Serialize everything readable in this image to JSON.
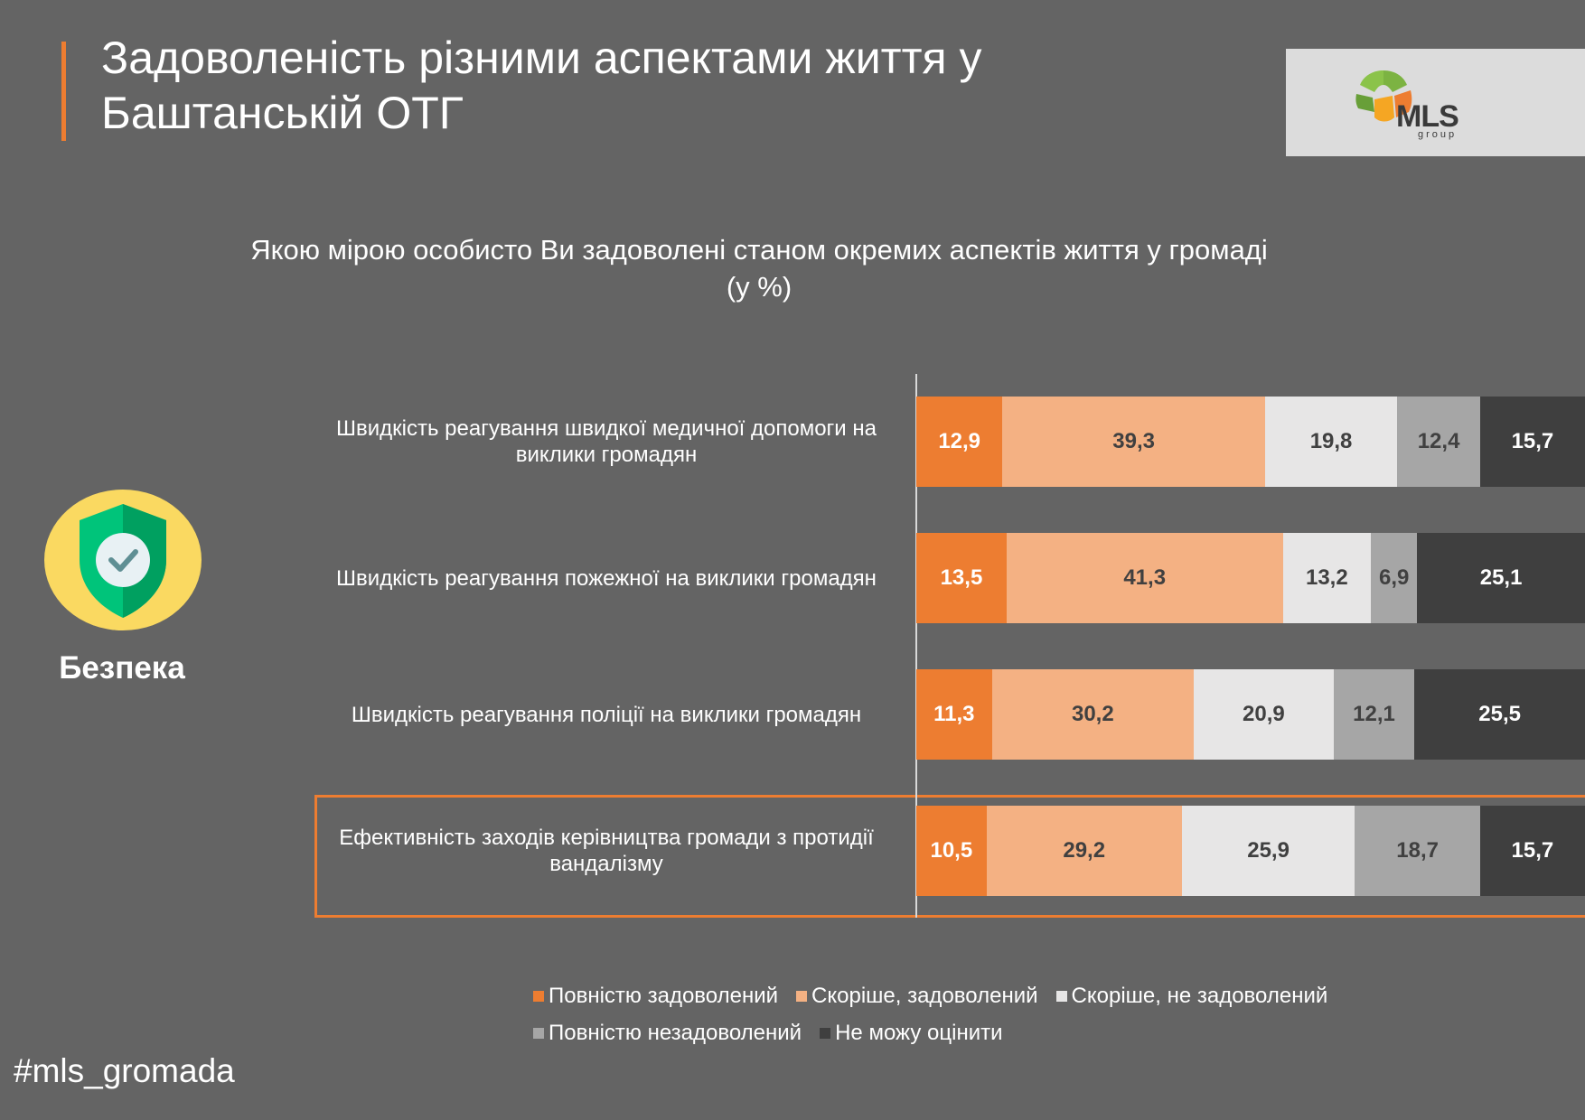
{
  "header": {
    "title_line1": "Задоволеність різними аспектами життя у",
    "title_line2": "Баштанській ОТГ",
    "logo_text": "MLS",
    "logo_sub": "group"
  },
  "question_line1": "Якою мірою особисто Ви задоволені станом окремих аспектів життя у громаді",
  "question_line2": "(у %)",
  "side_label": "Безпека",
  "hashtag": "#mls_gromada",
  "icon_names": [
    "shield-check-icon",
    "mls-logo-icon"
  ],
  "chart_data": {
    "type": "bar",
    "orientation": "horizontal",
    "stacked": true,
    "categories": [
      [
        "Швидкість реагування швидкої медичної допомоги на",
        "виклики громадян"
      ],
      [
        "Швидкість реагування пожежної на виклики громадян"
      ],
      [
        "Швидкість реагування поліції на виклики громадян"
      ],
      [
        "Ефективність заходів керівництва громади з протидії",
        "вандалізму"
      ]
    ],
    "highlighted_category_index": 3,
    "series": [
      {
        "name": "Повністю задоволений",
        "color": "#ED7D31",
        "text_color": "#ffffff",
        "values": [
          "12,9",
          "13,5",
          "11,3",
          "10,5"
        ]
      },
      {
        "name": "Скоріше, задоволений",
        "color": "#F4B183",
        "text_color": "#404040",
        "values": [
          "39,3",
          "41,3",
          "30,2",
          "29,2"
        ]
      },
      {
        "name": "Скоріше, не задоволений",
        "color": "#E7E6E6",
        "text_color": "#404040",
        "values": [
          "19,8",
          "13,2",
          "20,9",
          "25,9"
        ]
      },
      {
        "name": "Повністю незадоволений",
        "color": "#A6A6A6",
        "text_color": "#404040",
        "values": [
          "12,4",
          "6,9",
          "12,1",
          "18,7"
        ]
      },
      {
        "name": "Не можу оцінити",
        "color": "#3F3F3F",
        "text_color": "#ffffff",
        "values": [
          "15,7",
          "25,1",
          "25,5",
          "15,7"
        ]
      }
    ],
    "legend_position": "bottom",
    "grid": false
  }
}
